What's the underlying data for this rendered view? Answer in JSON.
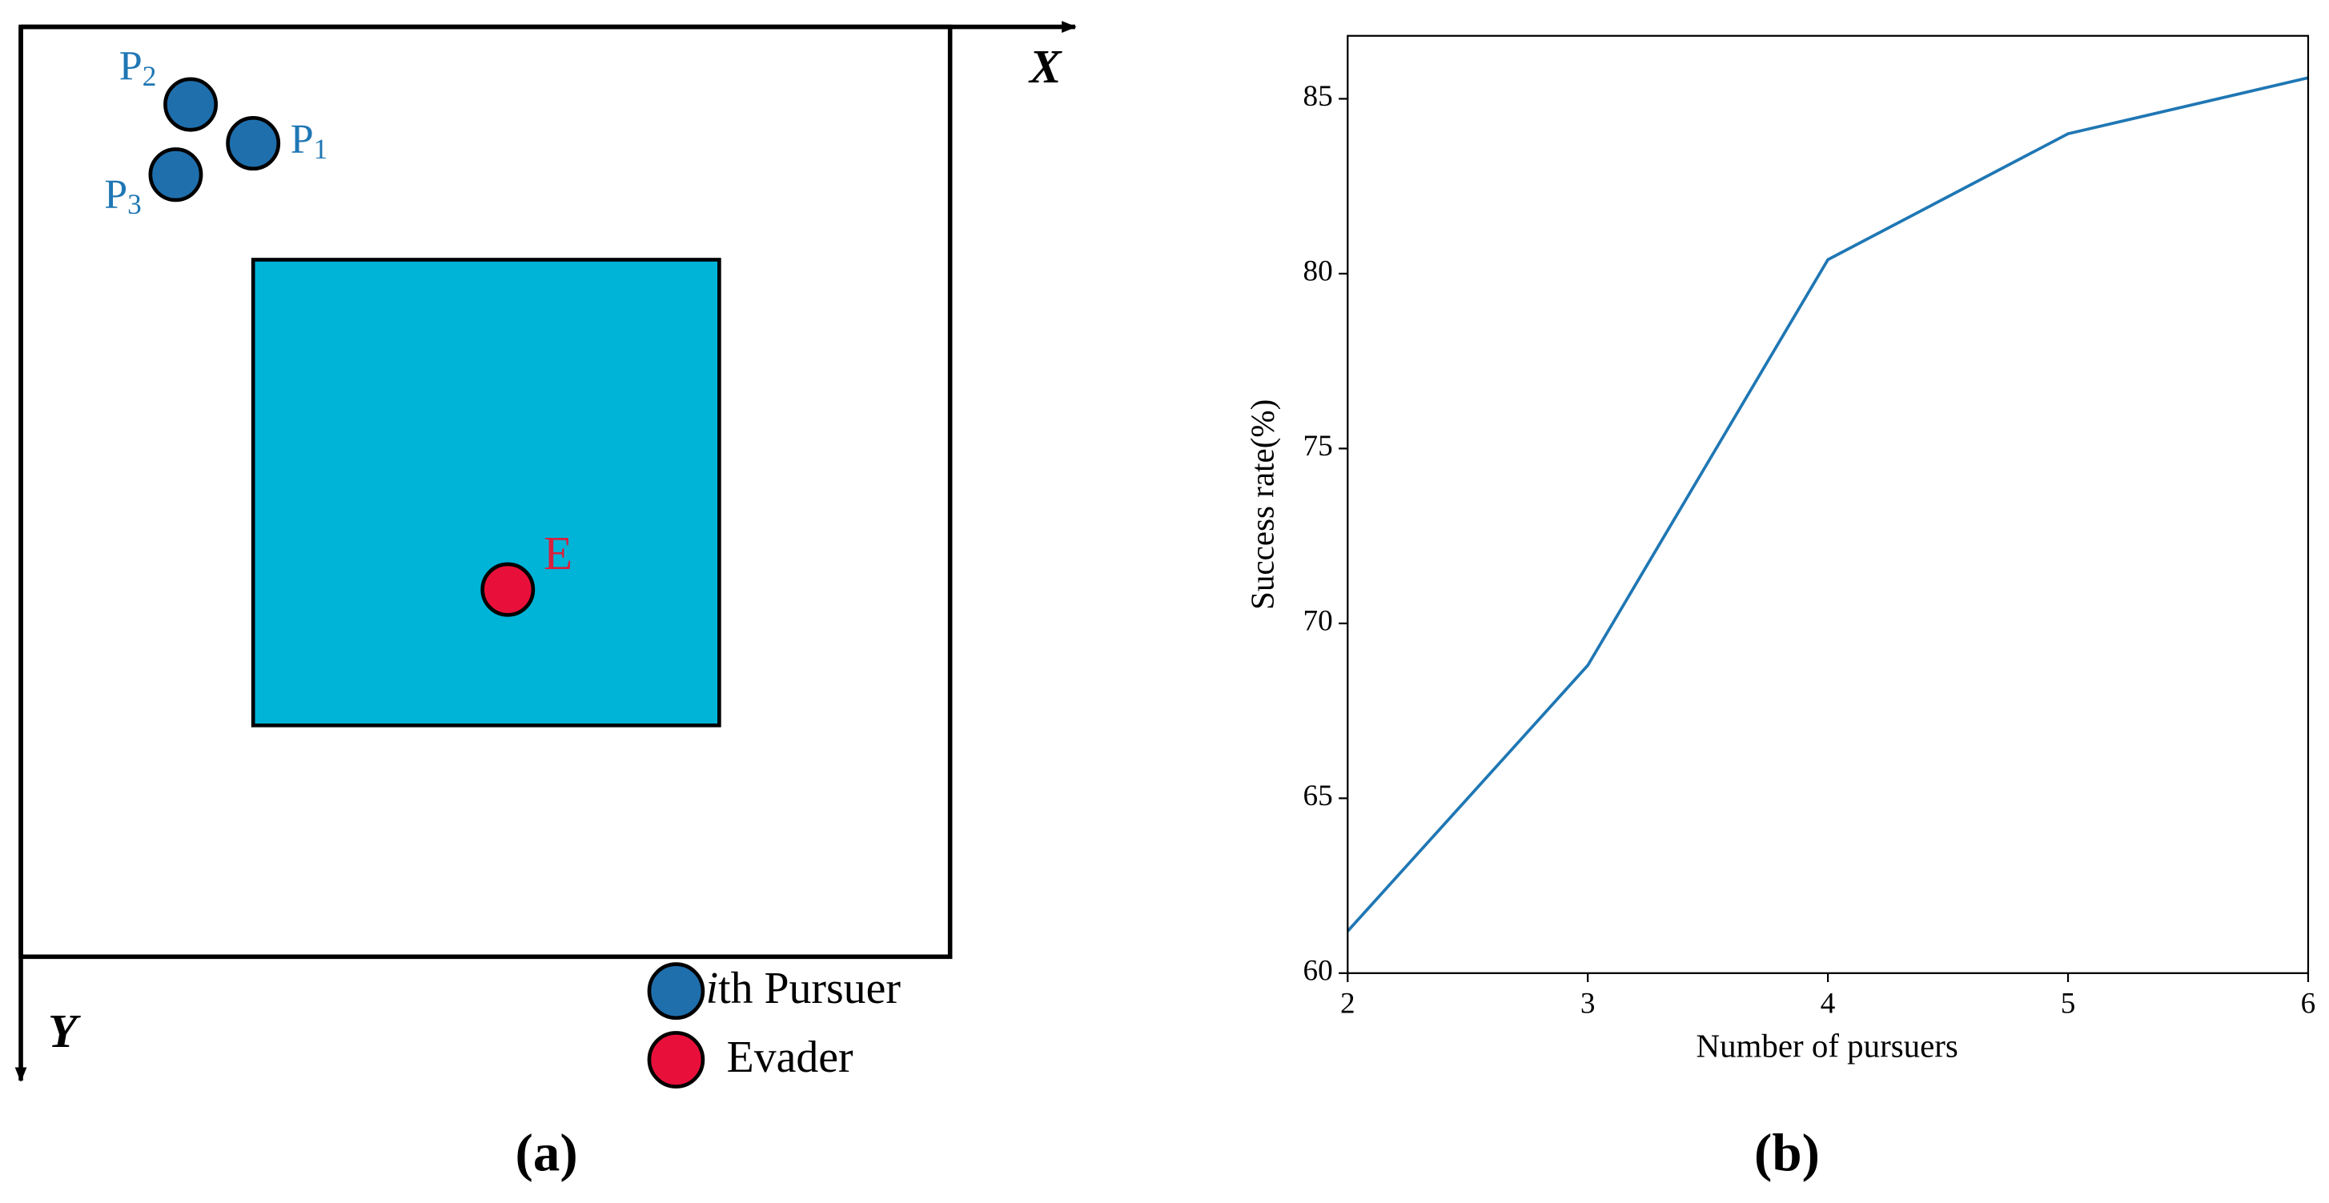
{
  "diagram": {
    "x_axis": "X",
    "y_axis": "Y",
    "pursuers": [
      {
        "label": "P",
        "index": "1"
      },
      {
        "label": "P",
        "index": "2"
      },
      {
        "label": "P",
        "index": "3"
      }
    ],
    "evader": "E",
    "legend": [
      {
        "italic": "i",
        "text": "th Pursuer"
      },
      {
        "text": "Evader"
      }
    ],
    "caption": "(a)"
  },
  "chart_data": {
    "type": "line",
    "x": [
      2,
      3,
      4,
      5,
      6
    ],
    "series": [
      {
        "color": "#1f77b4",
        "values": [
          61.2,
          68.8,
          80.4,
          84.0,
          85.6
        ]
      }
    ],
    "xlim": [
      2,
      6
    ],
    "ylim": [
      60,
      86.8
    ],
    "xticks": [
      2,
      3,
      4,
      5,
      6
    ],
    "yticks": [
      60,
      65,
      70,
      75,
      80,
      85
    ],
    "xlabel": "Number of pursuers",
    "ylabel": "Success rate(%)",
    "caption": "(b)"
  }
}
